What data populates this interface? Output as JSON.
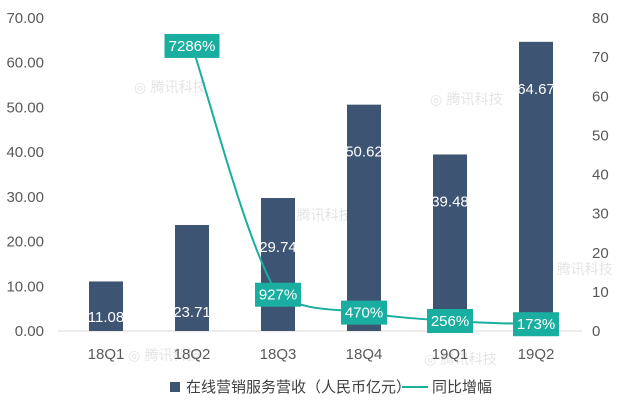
{
  "chart_data": {
    "type": "bar",
    "categories": [
      "18Q1",
      "18Q2",
      "18Q3",
      "18Q4",
      "19Q1",
      "19Q2"
    ],
    "series": [
      {
        "name": "在线营销服务营收（人民币亿元）",
        "type": "bar",
        "axis": "left",
        "values": [
          11.08,
          23.71,
          29.74,
          50.62,
          39.48,
          64.67
        ],
        "labels": [
          "11.08",
          "23.71",
          "29.74",
          "50.62",
          "39.48",
          "64.67"
        ],
        "color": "#3d5572"
      },
      {
        "name": "同比增幅",
        "type": "line",
        "axis": "right",
        "values": [
          null,
          72.86,
          9.27,
          4.7,
          2.56,
          1.73
        ],
        "labels": [
          "",
          "7286%",
          "927%",
          "470%",
          "256%",
          "173%"
        ],
        "color": "#1aaea0"
      }
    ],
    "left_axis": {
      "min": 0,
      "max": 70,
      "step": 10,
      "ticks": [
        "0.00",
        "10.00",
        "20.00",
        "30.00",
        "40.00",
        "50.00",
        "60.00",
        "70.00"
      ]
    },
    "right_axis": {
      "min": 0,
      "max": 80,
      "step": 10,
      "ticks": [
        "0",
        "10",
        "20",
        "30",
        "40",
        "50",
        "60",
        "70",
        "80"
      ]
    },
    "grid": false,
    "legend": "bottom",
    "watermark_text": "腾讯科技"
  }
}
